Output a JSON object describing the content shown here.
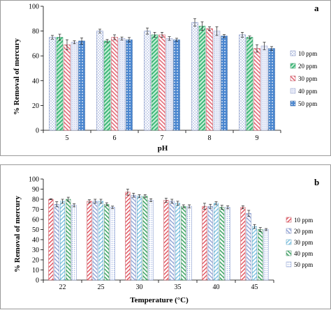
{
  "colors": {
    "10 ppm": "#8fa3d6",
    "20 ppm": "#3fb87a",
    "30 ppm": "#e26a78",
    "40 ppm": "#b9c3e8",
    "50 ppm": "#4a86cf"
  },
  "colors_b": {
    "10 ppm": "#e0505c",
    "20 ppm": "#8fa3d6",
    "30 ppm": "#7ec2e0",
    "40 ppm": "#43a86a",
    "50 ppm": "#9db2e2"
  },
  "chart_data": [
    {
      "type": "bar",
      "panel_label": "a",
      "xlabel": "pH",
      "ylabel": "% Removal of mercury",
      "ylim": [
        0,
        100
      ],
      "yticks": [
        0,
        20,
        40,
        60,
        80,
        100
      ],
      "grid": false,
      "legend_position": "right",
      "categories": [
        "5",
        "6",
        "7",
        "8",
        "9"
      ],
      "series": [
        {
          "name": "10 ppm",
          "values": [
            75,
            80,
            80,
            87,
            77
          ],
          "errors": [
            1.5,
            1.5,
            2.5,
            3,
            2
          ]
        },
        {
          "name": "20 ppm",
          "values": [
            75,
            72,
            77,
            84,
            75
          ],
          "errors": [
            2.5,
            1.2,
            2,
            3.5,
            1
          ]
        },
        {
          "name": "30 ppm",
          "values": [
            69,
            75,
            77,
            82,
            66
          ],
          "errors": [
            4,
            2,
            2,
            1.5,
            3
          ]
        },
        {
          "name": "40 ppm",
          "values": [
            71,
            74,
            74,
            80,
            68
          ],
          "errors": [
            1.2,
            1.2,
            1.5,
            3.5,
            3
          ]
        },
        {
          "name": "50 ppm",
          "values": [
            72,
            73,
            73,
            76,
            66
          ],
          "errors": [
            2.5,
            1.8,
            1.2,
            1.2,
            1.5
          ]
        }
      ]
    },
    {
      "type": "bar",
      "panel_label": "b",
      "xlabel": "Temperature (°C)",
      "ylabel": "% Removal of mercury",
      "ylim": [
        0,
        100
      ],
      "yticks": [
        0,
        10,
        20,
        30,
        40,
        50,
        60,
        70,
        80,
        90,
        100
      ],
      "grid": false,
      "legend_position": "right",
      "categories": [
        "22",
        "25",
        "30",
        "35",
        "40",
        "45"
      ],
      "series": [
        {
          "name": "10 ppm",
          "values": [
            80,
            78,
            87,
            79,
            73,
            72
          ],
          "errors": [
            0.5,
            1.5,
            3,
            2,
            3,
            1.5
          ]
        },
        {
          "name": "20 ppm",
          "values": [
            75,
            78,
            84,
            78,
            73,
            66
          ],
          "errors": [
            2.5,
            2,
            2,
            2,
            2,
            3
          ]
        },
        {
          "name": "30 ppm",
          "values": [
            78,
            78,
            83,
            76,
            76,
            53
          ],
          "errors": [
            2,
            2,
            1.5,
            2,
            1.5,
            2
          ]
        },
        {
          "name": "40 ppm",
          "values": [
            80,
            75,
            83,
            73,
            72,
            50
          ],
          "errors": [
            2,
            1.5,
            1.5,
            1.5,
            2,
            2
          ]
        },
        {
          "name": "50 ppm",
          "values": [
            74,
            72,
            79,
            73,
            72,
            50
          ],
          "errors": [
            1.5,
            1.2,
            1.5,
            1.5,
            1.5,
            1
          ]
        }
      ]
    }
  ]
}
